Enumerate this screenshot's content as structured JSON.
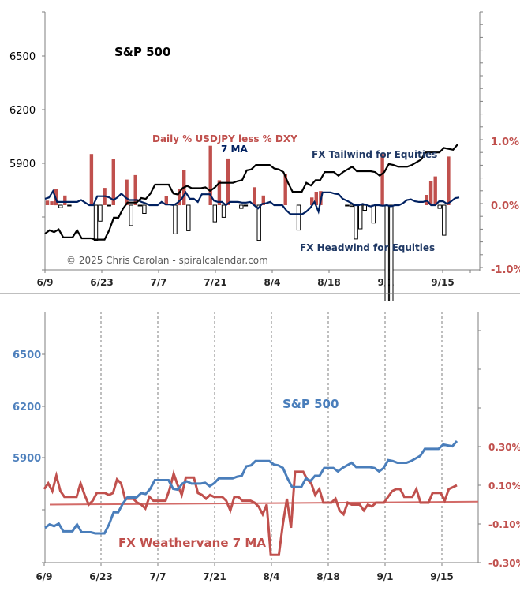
{
  "chart_data": [
    {
      "type": "line",
      "panel": "top",
      "title": "",
      "annotations": {
        "sp_label": "S&P 500",
        "bar_label": "Daily % USDJPY less % DXY",
        "ma_label": "7 MA",
        "tailwind": "FX Tailwind for Equities",
        "headwind": "FX Headwind for Equities",
        "copyright": "© 2025 Chris Carolan - spiralcalendar.com"
      },
      "x_ticks": [
        "6/9",
        "6/23",
        "7/7",
        "7/21",
        "8/4",
        "8/18",
        "9/1",
        "9/15"
      ],
      "left_axis": {
        "ticks": [
          "6500",
          "6200",
          "5900"
        ],
        "values": [
          6500,
          6200,
          5900
        ],
        "range": [
          5600,
          6800
        ]
      },
      "right_axis": {
        "ticks": [
          "1.0%",
          "0.0%",
          "-1.0%"
        ],
        "values": [
          1.0,
          0.0,
          -1.0
        ],
        "range": [
          -1.0,
          3.25
        ]
      },
      "colors": {
        "sp": "#000000",
        "bar_pos": "#c0504d",
        "bar_neg": "#ffffff",
        "ma": "#002060",
        "right_axis_text": "#c0504d",
        "tailwind_text": "#1f3864"
      },
      "series": [
        {
          "name": "S&P 500",
          "axis": "left",
          "values": [
            6000,
            6020,
            6010,
            6025,
            5980,
            5980,
            5980,
            6020,
            5975,
            5975,
            5975,
            5968,
            5968,
            5968,
            6020,
            6090,
            6090,
            6140,
            6175,
            6175,
            6175,
            6200,
            6195,
            6225,
            6275,
            6275,
            6275,
            6275,
            6225,
            6220,
            6255,
            6268,
            6255,
            6255,
            6255,
            6260,
            6240,
            6258,
            6285,
            6285,
            6285,
            6285,
            6295,
            6300,
            6355,
            6360,
            6385,
            6385,
            6385,
            6385,
            6365,
            6360,
            6345,
            6285,
            6235,
            6235,
            6235,
            6285,
            6270,
            6300,
            6300,
            6345,
            6345,
            6345,
            6325,
            6345,
            6360,
            6375,
            6350,
            6350,
            6350,
            6350,
            6345,
            6325,
            6345,
            6390,
            6385,
            6375,
            6375,
            6375,
            6385,
            6400,
            6415,
            6455,
            6455,
            6455,
            6455,
            6480,
            6475,
            6470,
            6500
          ]
        },
        {
          "name": "Daily % USDJPY less % DXY",
          "axis": "right",
          "type": "bar",
          "values": [
            0.07,
            0.06,
            0.25,
            -0.04,
            0.15,
            -0.01,
            0.0,
            0.0,
            0.0,
            0.0,
            0.8,
            -0.55,
            -0.25,
            0.27,
            -0.01,
            0.72,
            0.0,
            0.0,
            0.4,
            -0.32,
            0.47,
            -0.01,
            -0.13,
            0.0,
            0.0,
            0.0,
            0.0,
            0.14,
            0.0,
            -0.45,
            0.25,
            0.55,
            -0.4,
            0.0,
            0.0,
            0.0,
            0.0,
            0.93,
            -0.26,
            0.39,
            -0.19,
            0.73,
            0.0,
            0.0,
            -0.05,
            -0.01,
            0.0,
            0.28,
            -0.55,
            0.15,
            0.0,
            0.0,
            0.0,
            0.0,
            0.49,
            0.0,
            0.0,
            -0.39,
            0.0,
            0.0,
            0.12,
            0.21,
            0.22,
            0.0,
            0.0,
            0.0,
            0.0,
            0.0,
            -0.01,
            -0.02,
            -0.53,
            -0.37,
            -0.08,
            0.0,
            -0.28,
            0.0,
            0.8,
            -1.5,
            -1.5,
            0.0,
            0.0,
            0.0,
            0.0,
            0.0,
            0.0,
            0.0,
            0.16,
            0.38,
            0.45,
            -0.05,
            -0.47,
            0.76,
            -0.0
          ]
        },
        {
          "name": "7 MA",
          "axis": "right",
          "values": [
            0.1,
            0.12,
            0.22,
            0.05,
            0.05,
            0.05,
            0.05,
            0.05,
            0.05,
            0.08,
            0.04,
            0.0,
            0.0,
            0.14,
            0.14,
            0.14,
            0.12,
            0.08,
            0.12,
            0.18,
            0.12,
            0.08,
            0.08,
            0.08,
            0.05,
            0.03,
            0.0,
            0.0,
            0.0,
            0.05,
            0.01,
            0.01,
            0.0,
            0.04,
            0.1,
            0.2,
            0.1,
            0.1,
            0.05,
            0.17,
            0.17,
            0.17,
            0.07,
            0.05,
            0.05,
            0.0,
            0.05,
            0.05,
            0.05,
            0.04,
            0.04,
            0.05,
            0.0,
            -0.05,
            0.02,
            0.03,
            0.05,
            0.0,
            0.0,
            -0.0,
            -0.08,
            -0.14,
            -0.14,
            -0.14,
            -0.14,
            -0.1,
            -0.04,
            0.05,
            -0.1,
            0.2,
            0.2,
            0.2,
            0.18,
            0.17,
            0.1,
            0.07,
            0.04,
            0.0,
            0.0,
            0.02,
            0.0,
            -0.02,
            0.0,
            0.0,
            -0.01,
            0.0,
            -0.02,
            0.0,
            0.0,
            0.03,
            0.08,
            0.09,
            0.06,
            0.05,
            0.05,
            0.07,
            0.0,
            0.0,
            0.06,
            0.06,
            0.02,
            0.06,
            0.11,
            0.12
          ]
        }
      ]
    },
    {
      "type": "line",
      "panel": "bottom",
      "title": "",
      "annotations": {
        "sp_label": "S&P 500",
        "weathervane_label": "FX Weathervane 7 MA"
      },
      "x_ticks": [
        "6/9",
        "6/23",
        "7/7",
        "7/21",
        "8/4",
        "8/18",
        "9/1",
        "9/15"
      ],
      "left_axis": {
        "ticks": [
          "6500",
          "6200",
          "5900"
        ],
        "values": [
          6500,
          6200,
          5900
        ],
        "range": [
          5600,
          6800
        ]
      },
      "right_axis": {
        "ticks": [
          "0.30%",
          "0.10%",
          "-0.10%",
          "-0.30%"
        ],
        "values": [
          0.3,
          0.1,
          -0.1,
          -0.3
        ],
        "range": [
          -0.3,
          0.9
        ]
      },
      "vertical_gridlines": "dashed at each x tick",
      "colors": {
        "sp": "#4a7ebb",
        "weathervane": "#c0504d",
        "trend": "#d36b68",
        "left_axis_text": "#4f81bd",
        "right_axis_text": "#c0504d"
      },
      "series": [
        {
          "name": "S&P 500",
          "axis": "left",
          "values": [
            6000,
            6020,
            6010,
            6025,
            5980,
            5980,
            5980,
            6020,
            5975,
            5975,
            5975,
            5968,
            5968,
            5968,
            6020,
            6090,
            6090,
            6140,
            6175,
            6175,
            6175,
            6200,
            6195,
            6225,
            6275,
            6275,
            6275,
            6275,
            6225,
            6220,
            6255,
            6268,
            6255,
            6255,
            6255,
            6260,
            6240,
            6258,
            6285,
            6285,
            6285,
            6285,
            6295,
            6300,
            6355,
            6360,
            6385,
            6385,
            6385,
            6385,
            6365,
            6360,
            6345,
            6285,
            6235,
            6235,
            6235,
            6285,
            6270,
            6300,
            6300,
            6345,
            6345,
            6345,
            6325,
            6345,
            6360,
            6375,
            6350,
            6350,
            6350,
            6350,
            6345,
            6325,
            6345,
            6390,
            6385,
            6375,
            6375,
            6375,
            6385,
            6400,
            6415,
            6455,
            6455,
            6455,
            6455,
            6480,
            6475,
            6470,
            6500
          ]
        },
        {
          "name": "FX Weathervane 7 MA",
          "axis": "right",
          "values": [
            0.08,
            0.11,
            0.07,
            0.15,
            0.07,
            0.04,
            0.04,
            0.04,
            0.04,
            0.11,
            0.05,
            0.0,
            0.02,
            0.06,
            0.06,
            0.06,
            0.05,
            0.06,
            0.13,
            0.11,
            0.03,
            0.03,
            0.03,
            0.01,
            0.0,
            -0.02,
            0.04,
            0.02,
            0.02,
            0.02,
            0.02,
            0.08,
            0.16,
            0.1,
            0.05,
            0.14,
            0.14,
            0.14,
            0.06,
            0.05,
            0.03,
            0.05,
            0.04,
            0.04,
            0.04,
            0.02,
            -0.03,
            0.04,
            0.04,
            0.02,
            0.02,
            0.02,
            0.01,
            -0.01,
            -0.05,
            0.0,
            -0.26,
            -0.26,
            -0.26,
            -0.1,
            0.03,
            -0.12,
            0.17,
            0.17,
            0.17,
            0.13,
            0.11,
            0.05,
            0.08,
            0.01,
            0.01,
            0.01,
            0.03,
            -0.03,
            -0.05,
            0.01,
            0.0,
            0.0,
            0.0,
            -0.03,
            0.0,
            -0.01,
            0.01,
            0.01,
            0.01,
            0.04,
            0.07,
            0.08,
            0.08,
            0.04,
            0.04,
            0.04,
            0.08,
            0.01,
            0.01,
            0.01,
            0.06,
            0.06,
            0.06,
            0.02,
            0.08,
            0.09,
            0.1
          ]
        },
        {
          "name": "Trend",
          "axis": "right",
          "type": "linear",
          "values": [
            0.0,
            0.005
          ]
        }
      ]
    }
  ]
}
